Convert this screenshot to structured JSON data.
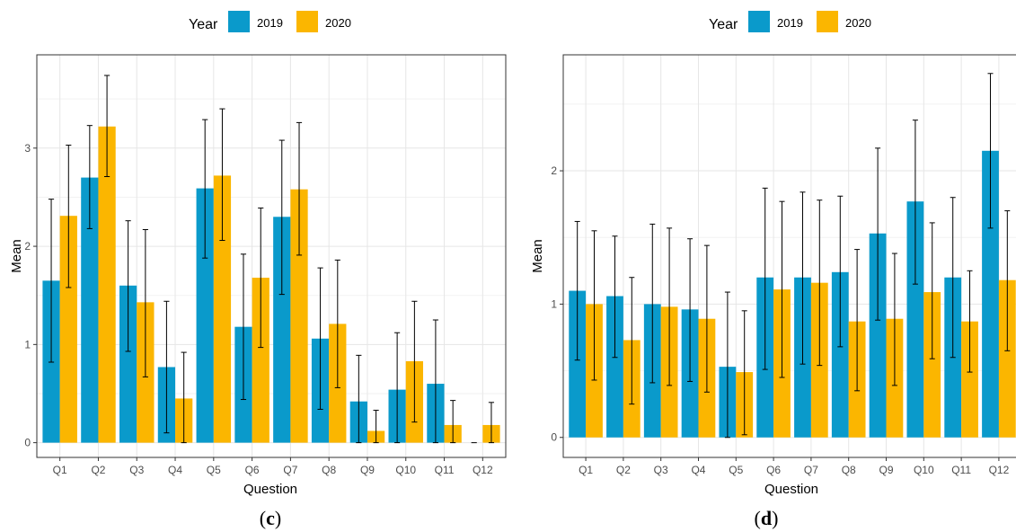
{
  "legend": {
    "title": "Year",
    "entries": [
      "2019",
      "2020"
    ]
  },
  "colors": {
    "2019": "#0a9acb",
    "2020": "#fbb600",
    "panel_border": "#333333",
    "grid_major": "#e6e6e6",
    "grid_minor": "#f2f2f2",
    "error_bar": "#000000"
  },
  "chart_data": [
    {
      "type": "bar",
      "panel_label": "c",
      "xlabel": "Question",
      "ylabel": "Mean",
      "categories": [
        "Q1",
        "Q2",
        "Q3",
        "Q4",
        "Q5",
        "Q6",
        "Q7",
        "Q8",
        "Q9",
        "Q10",
        "Q11",
        "Q12"
      ],
      "ylim": [
        -0.15,
        3.95
      ],
      "yticks": [
        0,
        1,
        2,
        3
      ],
      "grid": true,
      "legend_position": "top",
      "series": [
        {
          "name": "2019",
          "values": [
            1.65,
            2.7,
            1.6,
            0.77,
            2.59,
            1.18,
            2.3,
            1.06,
            0.42,
            0.54,
            0.6,
            0.0
          ],
          "err_low": [
            0.82,
            2.18,
            0.93,
            0.1,
            1.88,
            0.44,
            1.51,
            0.34,
            0.0,
            0.0,
            0.0,
            null
          ],
          "err_high": [
            2.48,
            3.23,
            2.26,
            1.44,
            3.29,
            1.92,
            3.08,
            1.78,
            0.89,
            1.12,
            1.25,
            null
          ]
        },
        {
          "name": "2020",
          "values": [
            2.31,
            3.22,
            1.43,
            0.45,
            2.72,
            1.68,
            2.58,
            1.21,
            0.12,
            0.83,
            0.18,
            0.18
          ],
          "err_low": [
            1.58,
            2.71,
            0.67,
            0.0,
            2.06,
            0.97,
            1.91,
            0.56,
            0.0,
            0.21,
            0.0,
            0.0
          ],
          "err_high": [
            3.03,
            3.74,
            2.17,
            0.92,
            3.4,
            2.39,
            3.26,
            1.86,
            0.33,
            1.44,
            0.43,
            0.41
          ]
        }
      ]
    },
    {
      "type": "bar",
      "panel_label": "d",
      "xlabel": "Question",
      "ylabel": "Mean",
      "categories": [
        "Q1",
        "Q2",
        "Q3",
        "Q4",
        "Q5",
        "Q6",
        "Q7",
        "Q8",
        "Q9",
        "Q10",
        "Q11",
        "Q12"
      ],
      "ylim": [
        -0.15,
        2.87
      ],
      "yticks": [
        0,
        1,
        2
      ],
      "grid": true,
      "legend_position": "top",
      "series": [
        {
          "name": "2019",
          "values": [
            1.1,
            1.06,
            1.0,
            0.96,
            0.53,
            1.2,
            1.2,
            1.24,
            1.53,
            1.77,
            1.2,
            2.15
          ],
          "err_low": [
            0.58,
            0.6,
            0.41,
            0.42,
            0.0,
            0.51,
            0.55,
            0.68,
            0.88,
            1.15,
            0.6,
            1.57
          ],
          "err_high": [
            1.62,
            1.51,
            1.6,
            1.49,
            1.09,
            1.87,
            1.84,
            1.81,
            2.17,
            2.38,
            1.8,
            2.73
          ]
        },
        {
          "name": "2020",
          "values": [
            1.0,
            0.73,
            0.98,
            0.89,
            0.49,
            1.11,
            1.16,
            0.87,
            0.89,
            1.09,
            0.87,
            1.18
          ],
          "err_low": [
            0.43,
            0.25,
            0.39,
            0.34,
            0.02,
            0.45,
            0.54,
            0.35,
            0.39,
            0.59,
            0.49,
            0.65
          ],
          "err_high": [
            1.55,
            1.2,
            1.57,
            1.44,
            0.95,
            1.77,
            1.78,
            1.41,
            1.38,
            1.61,
            1.25,
            1.7
          ]
        }
      ]
    }
  ]
}
